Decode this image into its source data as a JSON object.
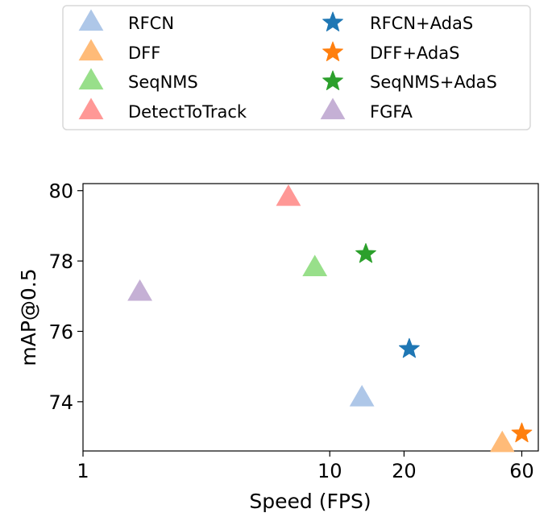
{
  "chart_data": {
    "type": "scatter",
    "xlabel": "Speed (FPS)",
    "ylabel": "mAP@0.5",
    "xscale": "log",
    "xlim": [
      1,
      70
    ],
    "ylim": [
      72.6,
      80.2
    ],
    "xticks": [
      1,
      10,
      20,
      60
    ],
    "yticks": [
      74,
      76,
      78,
      80
    ],
    "grid": false,
    "legend_position": "top",
    "series": [
      {
        "name": "RFCN",
        "marker": "triangle",
        "color": "#aec7e8",
        "x": 13.5,
        "y": 74.1
      },
      {
        "name": "DFF",
        "marker": "triangle",
        "color": "#ffbb78",
        "x": 50,
        "y": 72.8
      },
      {
        "name": "SeqNMS",
        "marker": "triangle",
        "color": "#98df8a",
        "x": 8.7,
        "y": 77.8
      },
      {
        "name": "DetectToTrack",
        "marker": "triangle",
        "color": "#ff9896",
        "x": 6.8,
        "y": 79.8
      },
      {
        "name": "RFCN+AdaS",
        "marker": "star",
        "color": "#1f77b4",
        "x": 21,
        "y": 75.5
      },
      {
        "name": "DFF+AdaS",
        "marker": "star",
        "color": "#ff7f0e",
        "x": 60,
        "y": 73.1
      },
      {
        "name": "SeqNMS+AdaS",
        "marker": "star",
        "color": "#2ca02c",
        "x": 14,
        "y": 78.2
      },
      {
        "name": "FGFA",
        "marker": "triangle",
        "color": "#c5b0d5",
        "x": 1.7,
        "y": 77.1
      }
    ]
  }
}
